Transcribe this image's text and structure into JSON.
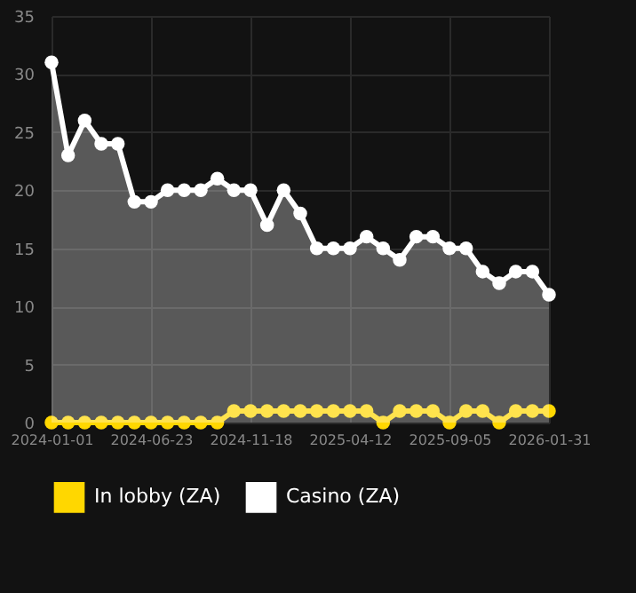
{
  "chart_data": {
    "type": "line",
    "categories": [
      "2024-01-01",
      null,
      null,
      null,
      null,
      null,
      "2024-06-23",
      null,
      null,
      null,
      null,
      null,
      "2024-11-18",
      null,
      null,
      null,
      null,
      null,
      "2025-04-12",
      null,
      null,
      null,
      null,
      null,
      "2025-09-05",
      null,
      null,
      null,
      null,
      null,
      "2026-01-31"
    ],
    "series": [
      {
        "name": "In lobby (ZA)",
        "color": "#ffd700",
        "values": [
          0,
          0,
          0,
          0,
          0,
          0,
          0,
          0,
          0,
          0,
          0,
          1,
          1,
          1,
          1,
          1,
          1,
          1,
          1,
          1,
          0,
          1,
          1,
          1,
          0,
          1,
          1,
          0,
          1,
          1,
          1
        ]
      },
      {
        "name": "Casino (ZA)",
        "type": "area",
        "color": "#ffffff",
        "values": [
          31,
          23,
          26,
          24,
          24,
          19,
          19,
          20,
          20,
          20,
          21,
          20,
          20,
          17,
          20,
          18,
          15,
          15,
          15,
          16,
          15,
          14,
          16,
          16,
          15,
          15,
          13,
          12,
          13,
          13,
          11
        ]
      }
    ],
    "ylim": [
      0,
      35
    ],
    "yticks": [
      0,
      5,
      10,
      15,
      20,
      25,
      30,
      35
    ],
    "grid": true,
    "legend": "bottom",
    "marker": "circle",
    "line_style": "solid"
  }
}
